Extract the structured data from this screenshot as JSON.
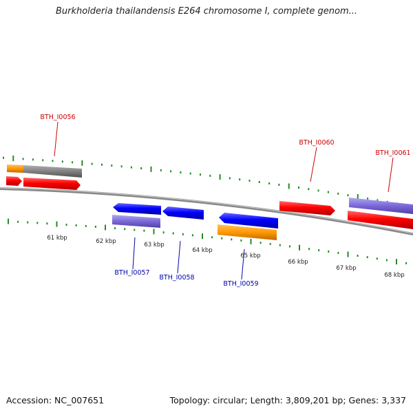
{
  "title": "Burkholderia thailandensis E264 chromosome I, complete genom...",
  "footer": {
    "accession": "Accession: NC_007651",
    "topology": "Topology: circular; Length: 3,809,201 bp; Genes: 3,337"
  },
  "axis": {
    "tick_labels": [
      "61 kbp",
      "62 kbp",
      "63 kbp",
      "64 kbp",
      "65 kbp",
      "66 kbp",
      "67 kbp",
      "68 kbp"
    ]
  },
  "colors": {
    "forward_gene": "#ff0000",
    "reverse_gene": "#0000ff",
    "orange_feature": "#ff9900",
    "gray_feature": "#808080",
    "purple_feature": "#7b68d8",
    "tick": "#228b22",
    "backbone": "#888888",
    "forward_label": "#cc0000",
    "reverse_label": "#0000aa"
  },
  "gene_labels": [
    "BTH_I0056",
    "BTH_I0057",
    "BTH_I0058",
    "BTH_I0059",
    "BTH_I0060",
    "BTH_I0061"
  ]
}
